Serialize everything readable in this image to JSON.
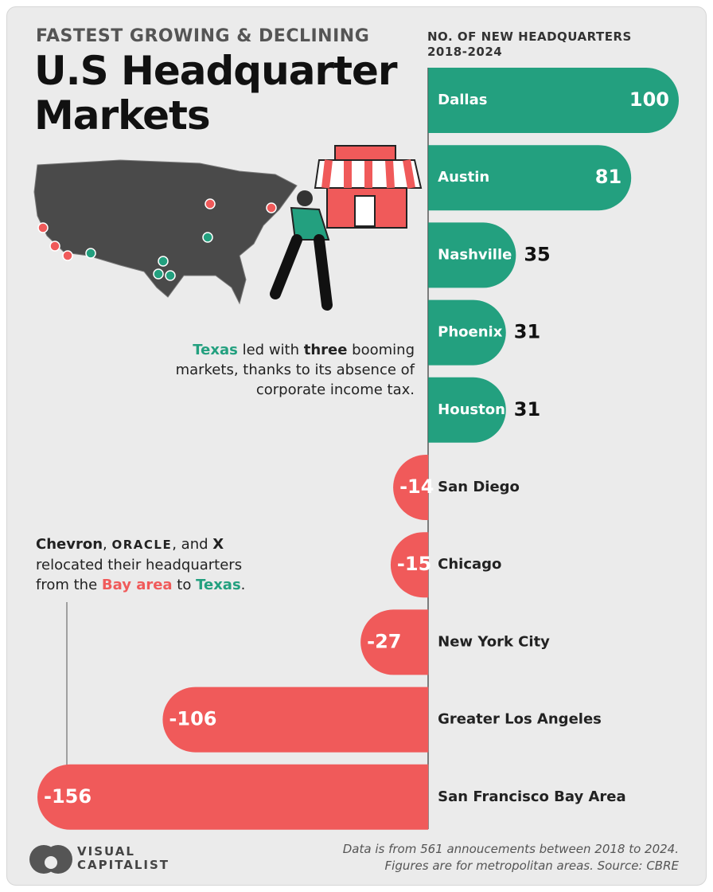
{
  "chart_data": {
    "type": "bar",
    "subtitle": "FASTEST GROWING & DECLINING",
    "title": "U.S Headquarter Markets",
    "axis_label": "NO. OF NEW HEADQUARTERS",
    "axis_period": "2018-2024",
    "categories": [
      "Dallas",
      "Austin",
      "Nashville",
      "Phoenix",
      "Houston",
      "San Diego",
      "Chicago",
      "New York City",
      "Greater Los Angeles",
      "San Francisco Bay Area"
    ],
    "values": [
      100,
      81,
      35,
      31,
      31,
      -14,
      -15,
      -27,
      -106,
      -156
    ],
    "positive_color": "#23a07f",
    "negative_color": "#f05a5a",
    "xlim": [
      -156,
      100
    ],
    "annotations": [
      {
        "parts": [
          {
            "text": "Texas",
            "color": "#23a07f",
            "bold": true
          },
          {
            "text": " led with "
          },
          {
            "text": "three",
            "bold": true
          },
          {
            "text": " booming markets, thanks to its absence of corporate income tax."
          }
        ]
      },
      {
        "parts": [
          {
            "text": "Chevron",
            "bold": true
          },
          {
            "text": ", "
          },
          {
            "text": "ORACLE",
            "logo": true
          },
          {
            "text": ", and "
          },
          {
            "text": "X",
            "bold": true
          },
          {
            "text": " relocated their headquarters from the "
          },
          {
            "text": "Bay area",
            "color": "#f05a5a",
            "bold": true
          },
          {
            "text": " to "
          },
          {
            "text": "Texas",
            "color": "#23a07f",
            "bold": true
          },
          {
            "text": "."
          }
        ]
      }
    ]
  },
  "footer": {
    "brand": "VISUAL CAPITALIST",
    "notes": [
      "Data is from 561 annoucements between 2018 to 2024.",
      "Figures are for metropolitan areas. Source: CBRE"
    ]
  }
}
